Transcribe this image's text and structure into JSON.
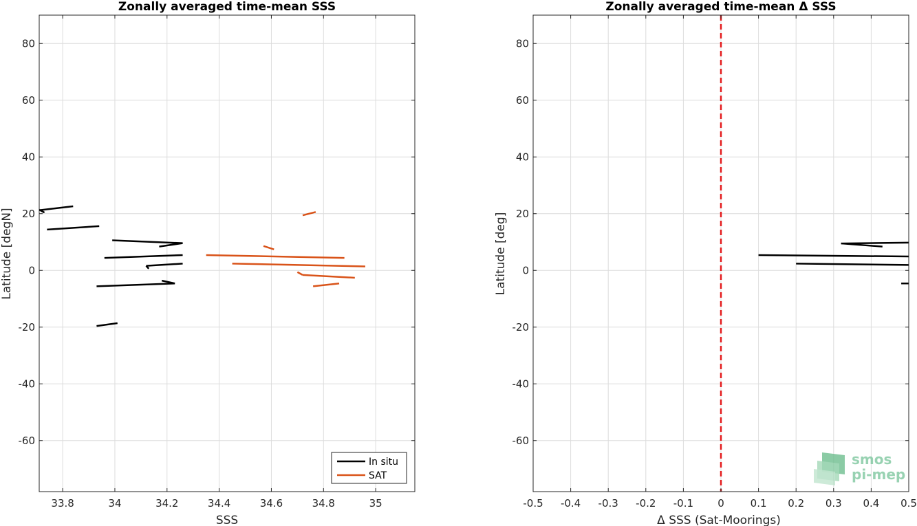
{
  "chart_data": [
    {
      "type": "line",
      "title": "Zonally averaged time-mean SSS",
      "xlabel": "SSS",
      "ylabel": "Latitude [degN]",
      "xlim": [
        33.71,
        35.15
      ],
      "ylim": [
        -78,
        90
      ],
      "xticks": [
        33.8,
        34,
        34.2,
        34.4,
        34.6,
        34.8,
        35
      ],
      "xtick_labels": [
        "33.8",
        "34",
        "34.2",
        "34.4",
        "34.6",
        "34.8",
        "35"
      ],
      "yticks": [
        -60,
        -40,
        -20,
        0,
        20,
        40,
        60,
        80
      ],
      "ytick_labels": [
        "-60",
        "-40",
        "-20",
        "0",
        "20",
        "40",
        "60",
        "80"
      ],
      "grid": true,
      "legend_position": "bottom-right",
      "series": [
        {
          "name": "In situ",
          "color": "#000000",
          "segments": [
            [
              [
                33.71,
                21.2
              ],
              [
                33.84,
                22.6
              ]
            ],
            [
              [
                33.71,
                21.4
              ],
              [
                33.73,
                20.4
              ]
            ],
            [
              [
                33.74,
                14.4
              ],
              [
                33.94,
                15.6
              ]
            ],
            [
              [
                33.99,
                10.6
              ],
              [
                34.26,
                9.6
              ]
            ],
            [
              [
                34.26,
                9.6
              ],
              [
                34.17,
                8.4
              ]
            ],
            [
              [
                33.96,
                4.4
              ],
              [
                34.26,
                5.4
              ]
            ],
            [
              [
                34.26,
                2.4
              ],
              [
                34.12,
                1.6
              ]
            ],
            [
              [
                34.12,
                1.6
              ],
              [
                34.13,
                0.6
              ]
            ],
            [
              [
                33.93,
                -5.6
              ],
              [
                34.23,
                -4.6
              ]
            ],
            [
              [
                34.23,
                -4.6
              ],
              [
                34.18,
                -3.6
              ]
            ],
            [
              [
                33.93,
                -19.6
              ],
              [
                34.01,
                -18.6
              ]
            ]
          ]
        },
        {
          "name": "SAT",
          "color": "#D95319",
          "segments": [
            [
              [
                34.72,
                19.4
              ],
              [
                34.77,
                20.6
              ]
            ],
            [
              [
                34.57,
                8.6
              ],
              [
                34.61,
                7.4
              ]
            ],
            [
              [
                34.35,
                5.4
              ],
              [
                34.88,
                4.4
              ]
            ],
            [
              [
                34.45,
                2.4
              ],
              [
                34.96,
                1.4
              ]
            ],
            [
              [
                34.7,
                -0.6
              ],
              [
                34.72,
                -1.6
              ]
            ],
            [
              [
                34.72,
                -1.6
              ],
              [
                34.92,
                -2.6
              ]
            ],
            [
              [
                34.76,
                -5.6
              ],
              [
                34.86,
                -4.6
              ]
            ]
          ]
        }
      ]
    },
    {
      "type": "line",
      "title": "Zonally averaged time-mean Δ SSS",
      "xlabel": "Δ SSS (Sat-Moorings)",
      "ylabel": "Latitude [deg]",
      "xlim": [
        -0.5,
        0.5
      ],
      "ylim": [
        -78,
        90
      ],
      "xticks": [
        -0.5,
        -0.4,
        -0.3,
        -0.2,
        -0.1,
        0,
        0.1,
        0.2,
        0.3,
        0.4,
        0.5
      ],
      "xtick_labels": [
        "-0.5",
        "-0.4",
        "-0.3",
        "-0.2",
        "-0.1",
        "0",
        "0.1",
        "0.2",
        "0.3",
        "0.4",
        "0.5"
      ],
      "yticks": [
        -60,
        -40,
        -20,
        0,
        20,
        40,
        60,
        80
      ],
      "ytick_labels": [
        "-60",
        "-40",
        "-20",
        "0",
        "20",
        "40",
        "60",
        "80"
      ],
      "grid": true,
      "reference_line": {
        "x": 0,
        "color": "#E31A1C",
        "style": "dashed"
      },
      "series": [
        {
          "color": "#000000",
          "segments": [
            [
              [
                0.1,
                5.4
              ],
              [
                0.5,
                4.9
              ]
            ],
            [
              [
                0.2,
                2.4
              ],
              [
                0.5,
                1.9
              ]
            ],
            [
              [
                0.32,
                9.5
              ],
              [
                0.5,
                9.8
              ]
            ],
            [
              [
                0.32,
                9.5
              ],
              [
                0.43,
                8.4
              ]
            ],
            [
              [
                0.48,
                -4.6
              ],
              [
                0.5,
                -4.6
              ]
            ]
          ]
        }
      ]
    }
  ],
  "logo": {
    "line1": "smos",
    "line2": "pi-mep",
    "color": "#7fc79f"
  }
}
